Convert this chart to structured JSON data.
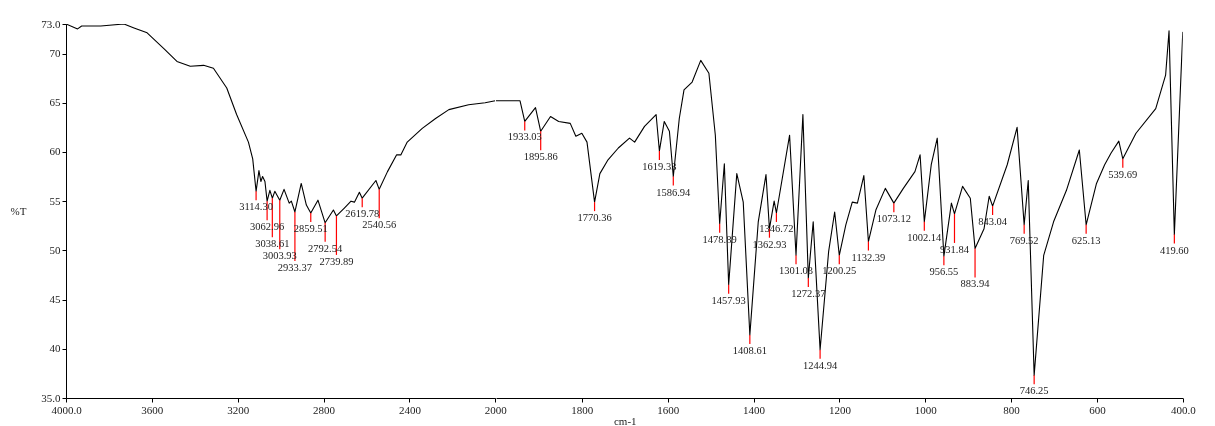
{
  "chart_data": [
    {
      "type": "line",
      "ylabel": "%T",
      "grid": false,
      "xlim": [
        4000,
        2000
      ],
      "ylim": [
        35,
        73
      ],
      "xticks": [
        {
          "value": 4000,
          "label": "4000.0"
        },
        3600,
        3200,
        2800,
        2400,
        2000
      ],
      "yticks": [
        {
          "value": 35,
          "label": "35.0"
        },
        40,
        45,
        50,
        55,
        60,
        65,
        70,
        {
          "value": 73,
          "label": "73.0"
        }
      ],
      "series": [
        {
          "color": "#000000",
          "x": [
            4000,
            3946,
            3927,
            3838,
            3730,
            3683,
            3622,
            3544,
            3483,
            3421,
            3359,
            3313,
            3251,
            3205,
            3150,
            3130,
            3114.3,
            3101,
            3092,
            3084,
            3073,
            3062.96,
            3050,
            3038.61,
            3027,
            3003.93,
            2984,
            2960,
            2950,
            2933.37,
            2904,
            2880,
            2859.51,
            2826,
            2792.54,
            2754,
            2739.89,
            2703,
            2672,
            2656,
            2633,
            2619.78,
            2556,
            2540.56,
            2502,
            2460,
            2440,
            2410,
            2340,
            2278,
            2216,
            2124,
            2047,
            2000
          ],
          "values": [
            73.0,
            72.5,
            72.8,
            72.8,
            73.0,
            72.6,
            72.1,
            70.5,
            69.2,
            68.7,
            68.8,
            68.5,
            66.5,
            63.8,
            61.0,
            59.3,
            56.0,
            58.1,
            57.0,
            57.5,
            57.0,
            55.0,
            56.1,
            55.3,
            56.0,
            55.1,
            56.2,
            54.8,
            55.0,
            53.9,
            56.8,
            54.6,
            53.8,
            55.1,
            52.8,
            54.1,
            53.5,
            54.3,
            55.0,
            54.9,
            55.9,
            55.3,
            57.1,
            56.2,
            58.0,
            59.7,
            59.7,
            61.0,
            62.4,
            63.4,
            64.3,
            64.8,
            65.0,
            65.2
          ]
        }
      ],
      "annotations": [
        {
          "text": "3114.30",
          "x": 3114.3,
          "y": 56.0
        },
        {
          "text": "3062.96",
          "x": 3062.96,
          "y": 55.0
        },
        {
          "text": "3038.61",
          "x": 3038.61,
          "y": 55.3
        },
        {
          "text": "3003.93",
          "x": 3003.93,
          "y": 55.1
        },
        {
          "text": "2933.37",
          "x": 2933.37,
          "y": 53.9
        },
        {
          "text": "2859.51",
          "x": 2859.51,
          "y": 53.8
        },
        {
          "text": "2792.54",
          "x": 2792.54,
          "y": 52.8
        },
        {
          "text": "2739.89",
          "x": 2739.89,
          "y": 53.5
        },
        {
          "text": "2619.78",
          "x": 2619.78,
          "y": 55.3
        },
        {
          "text": "2540.56",
          "x": 2540.56,
          "y": 56.2
        }
      ]
    },
    {
      "type": "line",
      "xlabel": "cm-1",
      "grid": false,
      "xlim": [
        2000,
        400
      ],
      "ylim": [
        35,
        73
      ],
      "xticks": [
        1800,
        1600,
        1400,
        1200,
        1000,
        800,
        600,
        {
          "value": 400,
          "label": "400.0"
        }
      ],
      "tick_labels": "x",
      "series": [
        {
          "color": "#000000",
          "x": [
            2000,
            1944,
            1933.03,
            1908,
            1895.86,
            1873,
            1854,
            1827,
            1814,
            1800,
            1788,
            1770.36,
            1758,
            1739,
            1715,
            1689,
            1677,
            1654,
            1627,
            1619.33,
            1608,
            1596,
            1586.94,
            1573,
            1562,
            1543,
            1523,
            1504,
            1489,
            1478.89,
            1468,
            1457.93,
            1439,
            1424,
            1408.61,
            1389,
            1371,
            1362.93,
            1352,
            1346.72,
            1316,
            1301.03,
            1285,
            1272.37,
            1261,
            1244.94,
            1225,
            1211,
            1200.25,
            1185,
            1170,
            1158,
            1143,
            1132.39,
            1115,
            1093,
            1073.12,
            1051,
            1024,
            1012,
            1002.14,
            986,
            972,
            956.55,
            939,
            931.84,
            913,
            895,
            883.94,
            863,
            851,
            843.04,
            809,
            786,
            769.52,
            760,
            746.25,
            724,
            701,
            671,
            641,
            625.13,
            601,
            582,
            567,
            549,
            539.69,
            509,
            463,
            440,
            432,
            419.6,
            400
          ],
          "values": [
            65.2,
            65.2,
            63.1,
            64.5,
            62.1,
            63.6,
            63.1,
            62.9,
            61.6,
            61.9,
            61.0,
            54.9,
            57.8,
            59.2,
            60.4,
            61.4,
            61.0,
            62.6,
            63.8,
            60.1,
            63.1,
            62.1,
            57.5,
            63.4,
            66.3,
            67.1,
            69.3,
            68.0,
            61.7,
            52.7,
            58.8,
            46.5,
            57.8,
            54.9,
            41.4,
            52.9,
            57.7,
            52.2,
            55.0,
            53.8,
            61.7,
            49.5,
            63.8,
            47.2,
            52.9,
            39.9,
            49.9,
            53.9,
            49.5,
            52.6,
            54.9,
            54.8,
            57.6,
            50.9,
            54.1,
            56.3,
            54.8,
            56.3,
            58.0,
            59.7,
            52.9,
            58.7,
            61.4,
            49.4,
            54.8,
            53.7,
            56.5,
            55.3,
            50.2,
            52.2,
            55.5,
            54.5,
            58.7,
            62.5,
            52.6,
            57.1,
            37.3,
            49.5,
            52.9,
            56.1,
            60.2,
            52.6,
            56.8,
            58.7,
            59.9,
            61.1,
            59.3,
            61.9,
            64.4,
            67.8,
            72.3,
            51.6,
            72.2
          ]
        }
      ],
      "annotations": [
        {
          "text": "1933.03",
          "x": 1933.03,
          "y": 63.1
        },
        {
          "text": "1895.86",
          "x": 1895.86,
          "y": 62.1
        },
        {
          "text": "1770.36",
          "x": 1770.36,
          "y": 54.9
        },
        {
          "text": "1619.33",
          "x": 1619.33,
          "y": 60.1
        },
        {
          "text": "1586.94",
          "x": 1586.94,
          "y": 57.5
        },
        {
          "text": "1478.89",
          "x": 1478.89,
          "y": 52.7
        },
        {
          "text": "1457.93",
          "x": 1457.93,
          "y": 46.5
        },
        {
          "text": "1408.61",
          "x": 1408.61,
          "y": 41.4
        },
        {
          "text": "1362.93",
          "x": 1362.93,
          "y": 52.2
        },
        {
          "text": "1346.72",
          "x": 1346.72,
          "y": 53.8
        },
        {
          "text": "1301.03",
          "x": 1301.03,
          "y": 49.5
        },
        {
          "text": "1272.37",
          "x": 1272.37,
          "y": 47.2
        },
        {
          "text": "1244.94",
          "x": 1244.94,
          "y": 39.9
        },
        {
          "text": "1200.25",
          "x": 1200.25,
          "y": 49.5
        },
        {
          "text": "1132.39",
          "x": 1132.39,
          "y": 50.9
        },
        {
          "text": "1073.12",
          "x": 1073.12,
          "y": 54.8
        },
        {
          "text": "1002.14",
          "x": 1002.14,
          "y": 52.9
        },
        {
          "text": "956.55",
          "x": 956.55,
          "y": 49.4
        },
        {
          "text": "931.84",
          "x": 931.84,
          "y": 53.7
        },
        {
          "text": "883.94",
          "x": 883.94,
          "y": 50.2
        },
        {
          "text": "843.04",
          "x": 843.04,
          "y": 54.5
        },
        {
          "text": "769.52",
          "x": 769.52,
          "y": 52.6
        },
        {
          "text": "746.25",
          "x": 746.25,
          "y": 37.3
        },
        {
          "text": "625.13",
          "x": 625.13,
          "y": 52.6
        },
        {
          "text": "539.69",
          "x": 539.69,
          "y": 59.3
        },
        {
          "text": "419.60",
          "x": 419.6,
          "y": 51.6
        }
      ]
    }
  ]
}
